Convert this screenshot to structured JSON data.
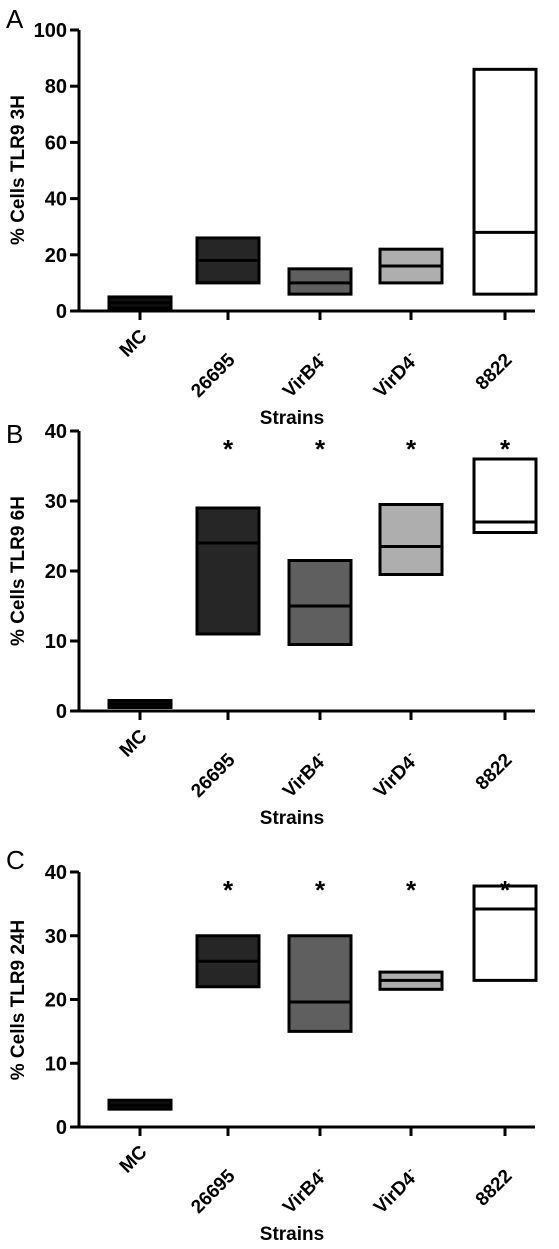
{
  "colors": {
    "MC": "#111111",
    "26695": "#262626",
    "VirB4-": "#5f5f5f",
    "VirD4-": "#aeaeae",
    "8822": "#ffffff",
    "outline": "#000000"
  },
  "chart_data": [
    {
      "type": "box",
      "panel": "A",
      "ylabel": "% Cells TLR9 3H",
      "xlabel": "Strains",
      "ylim": [
        0,
        100
      ],
      "yticks": [
        "0",
        "20",
        "40",
        "60",
        "80",
        "100"
      ],
      "categories": [
        {
          "base": "MC",
          "sup": ""
        },
        {
          "base": "26695",
          "sup": ""
        },
        {
          "base": "VirB4",
          "sup": "-"
        },
        {
          "base": "VirD4",
          "sup": "-"
        },
        {
          "base": "8822",
          "sup": ""
        }
      ],
      "boxes": [
        {
          "min": 1,
          "median": 3,
          "max": 5
        },
        {
          "min": 10,
          "median": 18,
          "max": 26
        },
        {
          "min": 6,
          "median": 10,
          "max": 15
        },
        {
          "min": 10,
          "median": 16,
          "max": 22
        },
        {
          "min": 6,
          "median": 28,
          "max": 86
        }
      ],
      "significance": [
        "",
        "",
        "",
        "",
        ""
      ]
    },
    {
      "type": "box",
      "panel": "B",
      "ylabel": "% Cells TLR9 6H",
      "xlabel": "Strains",
      "ylim": [
        0,
        40
      ],
      "yticks": [
        "0",
        "10",
        "20",
        "30",
        "40"
      ],
      "categories": [
        {
          "base": "MC",
          "sup": ""
        },
        {
          "base": "26695",
          "sup": ""
        },
        {
          "base": "VirB4",
          "sup": "-"
        },
        {
          "base": "VirD4",
          "sup": "-"
        },
        {
          "base": "8822",
          "sup": ""
        }
      ],
      "boxes": [
        {
          "min": 0.5,
          "median": 1,
          "max": 1.5
        },
        {
          "min": 11,
          "median": 24,
          "max": 29
        },
        {
          "min": 9.5,
          "median": 15,
          "max": 21.5
        },
        {
          "min": 19.5,
          "median": 23.5,
          "max": 29.5
        },
        {
          "min": 25.5,
          "median": 27,
          "max": 36
        }
      ],
      "significance": [
        "",
        "*",
        "*",
        "*",
        "*"
      ]
    },
    {
      "type": "box",
      "panel": "C",
      "ylabel": "% Cells TLR9 24H",
      "xlabel": "Strains",
      "ylim": [
        0,
        40
      ],
      "yticks": [
        "0",
        "10",
        "20",
        "30",
        "40"
      ],
      "categories": [
        {
          "base": "MC",
          "sup": ""
        },
        {
          "base": "26695",
          "sup": ""
        },
        {
          "base": "VirB4",
          "sup": "-"
        },
        {
          "base": "VirD4",
          "sup": "-"
        },
        {
          "base": "8822",
          "sup": ""
        }
      ],
      "boxes": [
        {
          "min": 2.8,
          "median": 3.4,
          "max": 4.2
        },
        {
          "min": 22,
          "median": 26,
          "max": 30
        },
        {
          "min": 15,
          "median": 19.6,
          "max": 30
        },
        {
          "min": 21.6,
          "median": 23,
          "max": 24.3
        },
        {
          "min": 23,
          "median": 34.2,
          "max": 37.8
        }
      ],
      "significance": [
        "",
        "*",
        "*",
        "*",
        "*"
      ]
    }
  ]
}
